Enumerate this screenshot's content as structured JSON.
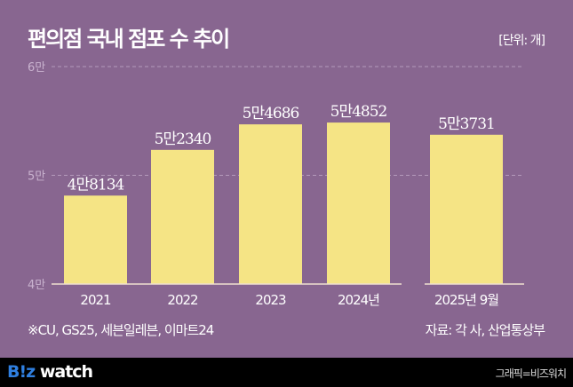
{
  "title": "편의점 국내 점포 수 추이",
  "unit": "[단위: 개]",
  "note": "※CU, GS25, 세븐일레븐, 이마트24",
  "source": "자료: 각 사, 산업통상부",
  "footer": {
    "logo_prefix": "B!z",
    "logo_suffix": " watch",
    "credit": "그래픽=비즈워치"
  },
  "colors": {
    "background": "#886690",
    "bar": "#f5e485",
    "footer": "#000000"
  },
  "chart_data": {
    "type": "bar",
    "categories": [
      "2021",
      "2022",
      "2023",
      "2024년",
      "2025년 9월"
    ],
    "values": [
      48134,
      52340,
      54686,
      54852,
      53731
    ],
    "data_labels": [
      "4만8134",
      "5만2340",
      "5만4686",
      "5만4852",
      "5만3731"
    ],
    "yticks": [
      {
        "value": 40000,
        "label": "4만"
      },
      {
        "value": 50000,
        "label": "5만"
      },
      {
        "value": 60000,
        "label": "6만"
      }
    ],
    "ylim": [
      40000,
      60000
    ],
    "grid": true
  }
}
